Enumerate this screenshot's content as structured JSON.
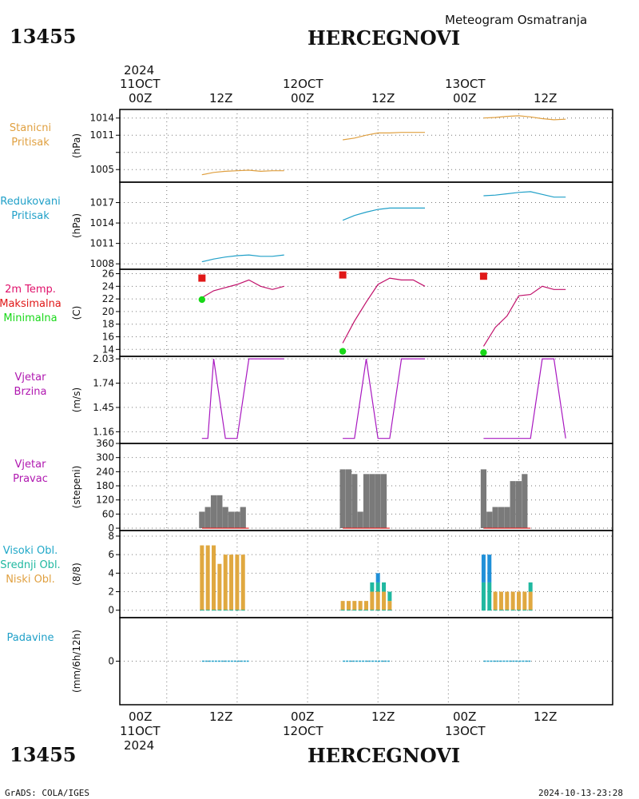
{
  "header": {
    "station_id": "13455",
    "station_name": "HERCEGNOVI",
    "subtitle": "Meteogram Osmatranja"
  },
  "footer": {
    "left": "GrADS: COLA/IGES",
    "right": "2024-10-13-23:28"
  },
  "time_axis": {
    "year": "2024",
    "days": [
      "11OCT",
      "12OCT",
      "13OCT"
    ],
    "hour_labels": [
      "00Z",
      "12Z"
    ]
  },
  "chart_data": [
    {
      "type": "line",
      "panel": "station_pressure",
      "labels": [
        "Stanicni",
        "Pritisak"
      ],
      "label_color": "#e0a040",
      "ylabel": "(hPa)",
      "yticks": [
        1005,
        1008,
        1011,
        1014
      ],
      "ytick_labels": [
        "1005",
        "",
        "1011",
        "1014"
      ],
      "ylim": [
        1002.8,
        1015.5
      ],
      "series": [
        {
          "color": "#e0a040",
          "x": [
            6,
            8,
            10,
            12,
            14,
            16,
            18,
            20
          ],
          "y": [
            1004.1,
            1004.5,
            1004.7,
            1004.8,
            1004.9,
            1004.7,
            1004.8,
            1004.8
          ]
        },
        {
          "color": "#e0a040",
          "x": [
            30,
            32,
            34,
            36,
            38,
            40,
            42,
            44
          ],
          "y": [
            1010.2,
            1010.5,
            1011.0,
            1011.4,
            1011.4,
            1011.5,
            1011.5,
            1011.5
          ]
        },
        {
          "color": "#e0a040",
          "x": [
            54,
            56,
            58,
            60,
            62,
            64,
            66,
            68
          ],
          "y": [
            1014.0,
            1014.1,
            1014.3,
            1014.4,
            1014.2,
            1013.9,
            1013.7,
            1013.8
          ]
        }
      ]
    },
    {
      "type": "line",
      "panel": "reduced_pressure",
      "labels": [
        "Redukovani",
        "Pritisak"
      ],
      "label_color": "#20a0c8",
      "ylabel": "(hPa)",
      "yticks": [
        1008,
        1011,
        1014,
        1017
      ],
      "ytick_labels": [
        "1008",
        "1011",
        "1014",
        "1017"
      ],
      "ylim": [
        1007.2,
        1020.0
      ],
      "series": [
        {
          "color": "#20a0c8",
          "x": [
            6,
            8,
            10,
            12,
            14,
            16,
            18,
            20
          ],
          "y": [
            1008.3,
            1008.7,
            1009.0,
            1009.2,
            1009.3,
            1009.1,
            1009.1,
            1009.3
          ]
        },
        {
          "color": "#20a0c8",
          "x": [
            30,
            32,
            34,
            36,
            38,
            40,
            42,
            44
          ],
          "y": [
            1014.4,
            1015.1,
            1015.6,
            1016.0,
            1016.2,
            1016.2,
            1016.2,
            1016.2
          ]
        },
        {
          "color": "#20a0c8",
          "x": [
            54,
            56,
            58,
            60,
            62,
            64,
            66,
            68
          ],
          "y": [
            1018.0,
            1018.1,
            1018.3,
            1018.5,
            1018.6,
            1018.2,
            1017.8,
            1017.8
          ]
        }
      ]
    },
    {
      "type": "line",
      "panel": "temperature",
      "labels": [
        "2m Temp.",
        "Maksimalna",
        "Minimalna"
      ],
      "label_colors": [
        "#e0106a",
        "#e01818",
        "#18d818"
      ],
      "ylabel": "(C)",
      "yticks": [
        14,
        16,
        18,
        20,
        22,
        24,
        26
      ],
      "ytick_labels": [
        "14",
        "16",
        "18",
        "20",
        "22",
        "24",
        "26"
      ],
      "ylim": [
        12.9,
        26.7
      ],
      "series": [
        {
          "color": "#c0106a",
          "x": [
            6,
            8,
            10,
            12,
            14,
            16,
            18,
            20
          ],
          "y": [
            22.2,
            23.3,
            23.8,
            24.3,
            25.0,
            24.0,
            23.5,
            24.0
          ]
        },
        {
          "color": "#c0106a",
          "x": [
            30,
            32,
            34,
            36,
            38,
            40,
            42,
            44
          ],
          "y": [
            15.0,
            18.5,
            21.5,
            24.3,
            25.3,
            25.0,
            25.0,
            24.0
          ]
        },
        {
          "color": "#c0106a",
          "x": [
            54,
            56,
            58,
            60,
            62,
            64,
            66,
            68
          ],
          "y": [
            14.5,
            17.5,
            19.3,
            22.5,
            22.7,
            24.0,
            23.5,
            23.5
          ]
        }
      ],
      "max_points": {
        "color": "#e01818",
        "x": [
          6,
          30,
          54
        ],
        "y": [
          25.3,
          25.8,
          25.6
        ]
      },
      "min_points": {
        "color": "#18d818",
        "x": [
          6,
          30,
          54
        ],
        "y": [
          21.9,
          13.7,
          13.5
        ]
      }
    },
    {
      "type": "line",
      "panel": "wind_speed",
      "labels": [
        "Vjetar",
        "Brzina"
      ],
      "label_color": "#b018b0",
      "ylabel": "(m/s)",
      "yticks": [
        1.16,
        1.45,
        1.74,
        2.03
      ],
      "ytick_labels": [
        "1.16",
        "1.45",
        "1.74",
        "2.03"
      ],
      "ylim": [
        1.02,
        2.06
      ],
      "series": [
        {
          "color": "#a818c0",
          "x": [
            6,
            7,
            8,
            10,
            12,
            14,
            16,
            18,
            20
          ],
          "y": [
            1.08,
            1.08,
            2.03,
            1.08,
            1.08,
            2.03,
            2.03,
            2.03,
            2.03
          ]
        },
        {
          "color": "#a818c0",
          "x": [
            30,
            32,
            34,
            36,
            38,
            40,
            42,
            44
          ],
          "y": [
            1.08,
            1.08,
            2.03,
            1.08,
            1.08,
            2.03,
            2.03,
            2.03
          ]
        },
        {
          "color": "#a818c0",
          "x": [
            54,
            56,
            58,
            60,
            62,
            64,
            66,
            68
          ],
          "y": [
            1.08,
            1.08,
            1.08,
            1.08,
            1.08,
            2.03,
            2.03,
            1.08
          ]
        }
      ]
    },
    {
      "type": "bar",
      "panel": "wind_direction",
      "labels": [
        "Vjetar",
        "Pravac"
      ],
      "label_color": "#b018b0",
      "ylabel": "(stepeni)",
      "yticks": [
        0,
        60,
        120,
        180,
        240,
        300,
        360
      ],
      "ytick_labels": [
        "0",
        "60",
        "120",
        "180",
        "240",
        "300",
        "360"
      ],
      "ylim": [
        -10,
        360
      ],
      "bar_color": "#7a7a7a",
      "x": [
        6,
        7,
        8,
        9,
        10,
        11,
        12,
        13,
        14,
        30,
        31,
        32,
        33,
        34,
        35,
        36,
        37,
        38,
        54,
        55,
        56,
        57,
        58,
        59,
        60,
        61,
        62
      ],
      "values": [
        70,
        90,
        140,
        140,
        90,
        70,
        70,
        90,
        0,
        250,
        250,
        230,
        70,
        230,
        230,
        230,
        230,
        0,
        250,
        70,
        90,
        90,
        90,
        200,
        200,
        230,
        0
      ],
      "zero_line_color": "#e01818"
    },
    {
      "type": "bar",
      "panel": "cloud_cover",
      "labels": [
        "Visoki Obl.",
        "Srednji Obl.",
        "Niski Obl."
      ],
      "label_colors": [
        "#20a8c8",
        "#20b8a0",
        "#e0a040"
      ],
      "ylabel": "(8/8)",
      "yticks": [
        0,
        2,
        4,
        6,
        8
      ],
      "ytick_labels": [
        "0",
        "2",
        "4",
        "6",
        "8"
      ],
      "ylim": [
        -0.8,
        8.6
      ],
      "x": [
        6,
        7,
        8,
        9,
        10,
        11,
        12,
        13,
        30,
        31,
        32,
        33,
        34,
        35,
        36,
        37,
        38,
        54,
        55,
        56,
        57,
        58,
        59,
        60,
        61,
        62
      ],
      "series": [
        {
          "name": "Niski Obl.",
          "color": "#e0a840",
          "values": [
            7,
            7,
            7,
            5,
            6,
            6,
            6,
            6,
            1,
            1,
            1,
            1,
            1,
            2,
            2,
            2,
            1,
            0,
            0,
            2,
            2,
            2,
            2,
            2,
            2,
            2
          ]
        },
        {
          "name": "Srednji Obl.",
          "color": "#20b8a0",
          "values": [
            0,
            0,
            0,
            0,
            0,
            0,
            0,
            0,
            0,
            0,
            0,
            0,
            0,
            1,
            1,
            1,
            1,
            3,
            3,
            0,
            0,
            0,
            0,
            0,
            0,
            1
          ]
        },
        {
          "name": "Visoki Obl.",
          "color": "#2090d8",
          "values": [
            0,
            0,
            0,
            0,
            0,
            0,
            0,
            0,
            0,
            0,
            0,
            0,
            0,
            0,
            1,
            0,
            0,
            3,
            3,
            0,
            0,
            0,
            0,
            0,
            0,
            0
          ]
        }
      ]
    },
    {
      "type": "bar",
      "panel": "precipitation",
      "labels": [
        "Padavine"
      ],
      "label_color": "#20a0c8",
      "ylabel": "(mm/6h/12h)",
      "yticks": [
        0
      ],
      "ytick_labels": [
        "0"
      ],
      "ylim": [
        -4,
        4
      ],
      "bar_color": "#20a0c8",
      "x": [
        6,
        14,
        30,
        38,
        54,
        62
      ],
      "values": [
        0,
        0,
        0,
        0,
        0,
        0
      ]
    }
  ]
}
